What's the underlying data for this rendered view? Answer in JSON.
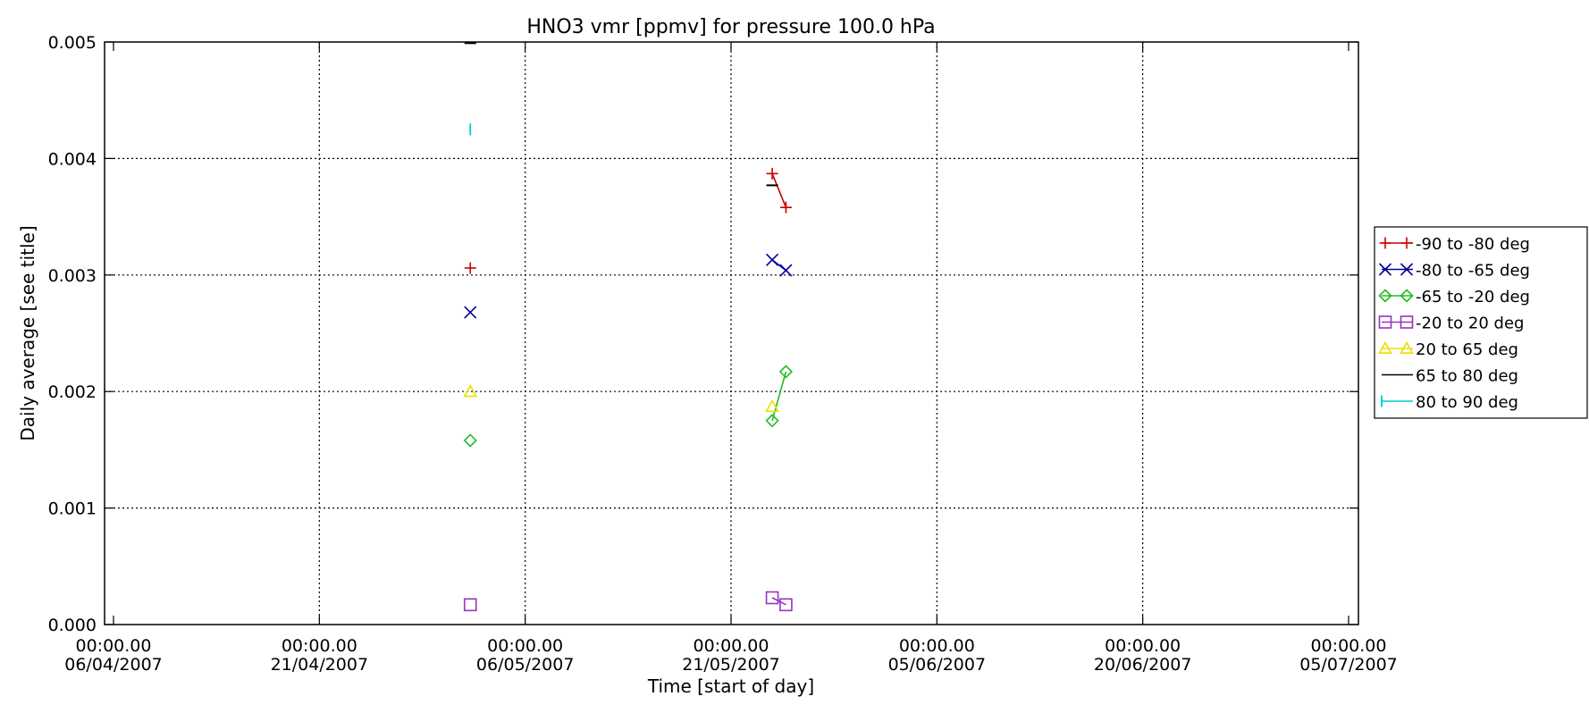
{
  "chart_data": {
    "type": "scatter",
    "title": "HNO3 vmr [ppmv] for pressure 100.0 hPa",
    "xlabel": "Time [start of day]",
    "ylabel": "Daily average [see title]",
    "xlim": [
      "2007-04-06",
      "2007-07-05"
    ],
    "ylim": [
      0.0,
      0.005
    ],
    "grid": true,
    "legend_position": "right",
    "x_ticks": [
      {
        "date": "2007-04-06",
        "time": "00:00.00",
        "label": "06/04/2007"
      },
      {
        "date": "2007-04-21",
        "time": "00:00.00",
        "label": "21/04/2007"
      },
      {
        "date": "2007-05-06",
        "time": "00:00.00",
        "label": "06/05/2007"
      },
      {
        "date": "2007-05-21",
        "time": "00:00.00",
        "label": "21/05/2007"
      },
      {
        "date": "2007-06-05",
        "time": "00:00.00",
        "label": "05/06/2007"
      },
      {
        "date": "2007-06-20",
        "time": "00:00.00",
        "label": "20/06/2007"
      },
      {
        "date": "2007-07-05",
        "time": "00:00.00",
        "label": "05/07/2007"
      }
    ],
    "y_ticks": [
      "0.000",
      "0.001",
      "0.002",
      "0.003",
      "0.004",
      "0.005"
    ],
    "series": [
      {
        "name": "-90 to -80 deg",
        "color": "#cc0000",
        "marker": "plus",
        "points": [
          [
            "2007-05-02",
            0.00306
          ],
          [
            "2007-05-24",
            0.00387
          ],
          [
            "2007-05-25",
            0.00358
          ]
        ]
      },
      {
        "name": "-80 to -65 deg",
        "color": "#000099",
        "marker": "x",
        "points": [
          [
            "2007-05-02",
            0.00268
          ],
          [
            "2007-05-24",
            0.00313
          ],
          [
            "2007-05-25",
            0.00304
          ]
        ]
      },
      {
        "name": "-65 to -20 deg",
        "color": "#22bb22",
        "marker": "diamond",
        "points": [
          [
            "2007-05-02",
            0.00158
          ],
          [
            "2007-05-24",
            0.00175
          ],
          [
            "2007-05-25",
            0.00217
          ]
        ]
      },
      {
        "name": "-20 to 20 deg",
        "color": "#9933bb",
        "marker": "square",
        "points": [
          [
            "2007-05-02",
            0.00017
          ],
          [
            "2007-05-24",
            0.00023
          ],
          [
            "2007-05-25",
            0.00017
          ]
        ]
      },
      {
        "name": "20 to 65 deg",
        "color": "#eedd00",
        "marker": "triangle",
        "points": [
          [
            "2007-05-02",
            0.002
          ],
          [
            "2007-05-24",
            0.00187
          ]
        ]
      },
      {
        "name": "65 to 80 deg",
        "color": "#000000",
        "marker": "hline",
        "points": [
          [
            "2007-05-02",
            0.00499
          ],
          [
            "2007-05-24",
            0.00377
          ]
        ]
      },
      {
        "name": "80 to 90 deg",
        "color": "#00cccc",
        "marker": "vline",
        "points": [
          [
            "2007-05-02",
            0.00425
          ]
        ]
      }
    ]
  }
}
